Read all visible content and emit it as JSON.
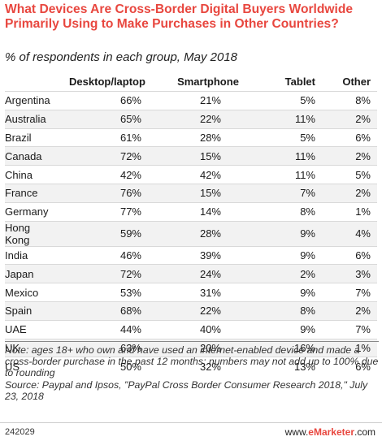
{
  "header": {
    "title": "What Devices Are Cross-Border Digital Buyers Worldwide Primarily Using to Make Purchases in Other Countries?",
    "subtitle": "% of respondents in each group, May 2018"
  },
  "chart_data": {
    "type": "table",
    "columns": [
      "",
      "Desktop/laptop",
      "Smartphone",
      "Tablet",
      "Other"
    ],
    "rows": [
      {
        "country": "Argentina",
        "values": [
          "66%",
          "21%",
          "5%",
          "8%"
        ]
      },
      {
        "country": "Australia",
        "values": [
          "65%",
          "22%",
          "11%",
          "2%"
        ]
      },
      {
        "country": "Brazil",
        "values": [
          "61%",
          "28%",
          "5%",
          "6%"
        ]
      },
      {
        "country": "Canada",
        "values": [
          "72%",
          "15%",
          "11%",
          "2%"
        ]
      },
      {
        "country": "China",
        "values": [
          "42%",
          "42%",
          "11%",
          "5%"
        ]
      },
      {
        "country": "France",
        "values": [
          "76%",
          "15%",
          "7%",
          "2%"
        ]
      },
      {
        "country": "Germany",
        "values": [
          "77%",
          "14%",
          "8%",
          "1%"
        ]
      },
      {
        "country": "Hong Kong",
        "values": [
          "59%",
          "28%",
          "9%",
          "4%"
        ]
      },
      {
        "country": "India",
        "values": [
          "46%",
          "39%",
          "9%",
          "6%"
        ]
      },
      {
        "country": "Japan",
        "values": [
          "72%",
          "24%",
          "2%",
          "3%"
        ]
      },
      {
        "country": "Mexico",
        "values": [
          "53%",
          "31%",
          "9%",
          "7%"
        ]
      },
      {
        "country": "Spain",
        "values": [
          "68%",
          "22%",
          "8%",
          "2%"
        ]
      },
      {
        "country": "UAE",
        "values": [
          "44%",
          "40%",
          "9%",
          "7%"
        ]
      },
      {
        "country": "UK",
        "values": [
          "63%",
          "20%",
          "16%",
          "1%"
        ]
      },
      {
        "country": "US",
        "values": [
          "50%",
          "32%",
          "13%",
          "6%"
        ]
      }
    ]
  },
  "notes": {
    "note": "Note: ages 18+ who own and have used an internet-enabled device and made a cross-border purchase in the past 12 months; numbers may not add up to 100% due to rounding",
    "source": "Source: Paypal and Ipsos, \"PayPal Cross Border Consumer Research 2018,\" July 23, 2018"
  },
  "footer": {
    "chart_id": "242029",
    "brand_prefix": "www.",
    "brand_name": "eMarketer",
    "brand_suffix": ".com"
  },
  "colors": {
    "title": "#e8473f",
    "row_shade": "#f2f2f2"
  }
}
